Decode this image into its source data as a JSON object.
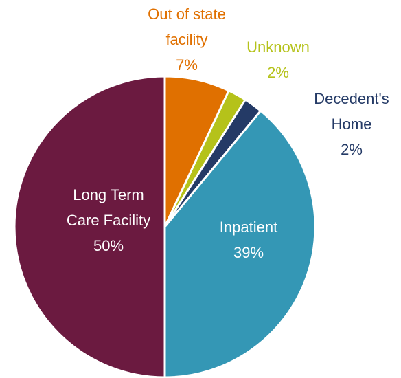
{
  "chart_data": {
    "type": "pie",
    "categories": [
      "Out of state facility",
      "Unknown",
      "Decedent's Home",
      "Inpatient",
      "Long Term Care Facility"
    ],
    "values": [
      7,
      2,
      2,
      39,
      50
    ],
    "value_labels": [
      "7%",
      "2%",
      "2%",
      "39%",
      "50%"
    ],
    "colors": [
      "#e07000",
      "#b5c21a",
      "#243a66",
      "#3497b5",
      "#6b1a40"
    ]
  }
}
